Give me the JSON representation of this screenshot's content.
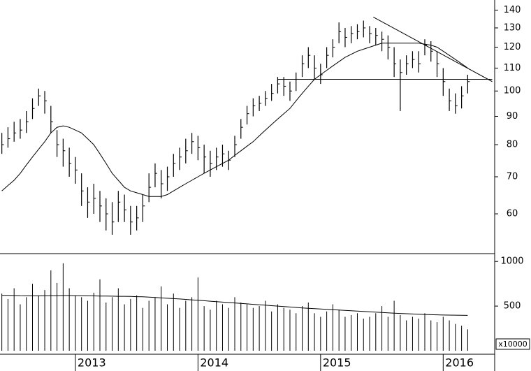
{
  "chart_data": [
    {
      "type": "hlc",
      "log_scale": true,
      "color": "#000000",
      "x": [
        2012.4,
        2012.45,
        2012.5,
        2012.55,
        2012.6,
        2012.65,
        2012.7,
        2012.75,
        2012.8,
        2012.85,
        2012.9,
        2012.95,
        2013.0,
        2013.05,
        2013.1,
        2013.15,
        2013.2,
        2013.25,
        2013.3,
        2013.35,
        2013.4,
        2013.45,
        2013.5,
        2013.55,
        2013.6,
        2013.65,
        2013.7,
        2013.75,
        2013.8,
        2013.85,
        2013.9,
        2013.95,
        2014.0,
        2014.05,
        2014.1,
        2014.15,
        2014.2,
        2014.25,
        2014.3,
        2014.35,
        2014.4,
        2014.45,
        2014.5,
        2014.55,
        2014.6,
        2014.65,
        2014.7,
        2014.75,
        2014.8,
        2014.85,
        2014.9,
        2014.95,
        2015.0,
        2015.05,
        2015.1,
        2015.15,
        2015.2,
        2015.25,
        2015.3,
        2015.35,
        2015.4,
        2015.45,
        2015.5,
        2015.55,
        2015.6,
        2015.65,
        2015.7,
        2015.75,
        2015.8,
        2015.85,
        2015.9,
        2015.95,
        2016.0,
        2016.05,
        2016.1,
        2016.15,
        2016.2
      ],
      "high": [
        84,
        86,
        88,
        89,
        92,
        97,
        101,
        100,
        94,
        85,
        82,
        79,
        76,
        71,
        67,
        68,
        66,
        64,
        63,
        66,
        65,
        62,
        62,
        65,
        71,
        74,
        72,
        73,
        77,
        79,
        82,
        84,
        83,
        80,
        78,
        79,
        80,
        78,
        83,
        89,
        94,
        97,
        98,
        100,
        103,
        106,
        106,
        104,
        108,
        116,
        120,
        116,
        112,
        120,
        124,
        133,
        130,
        131,
        132,
        134,
        131,
        130,
        128,
        126,
        120,
        114,
        116,
        118,
        118,
        124,
        123,
        118,
        110,
        101,
        99,
        102,
        107
      ],
      "low": [
        77,
        79,
        81,
        82,
        84,
        89,
        94,
        91,
        84,
        76,
        73,
        70,
        68,
        62,
        59,
        60,
        58,
        56,
        55,
        58,
        58,
        55,
        56,
        58,
        63,
        67,
        64,
        66,
        70,
        72,
        74,
        77,
        75,
        71,
        70,
        72,
        73,
        72,
        76,
        82,
        87,
        90,
        92,
        94,
        96,
        99,
        98,
        96,
        100,
        106,
        110,
        105,
        103,
        110,
        115,
        122,
        120,
        122,
        124,
        125,
        122,
        121,
        118,
        114,
        106,
        92,
        107,
        110,
        108,
        116,
        113,
        106,
        98,
        92,
        91,
        93,
        99
      ],
      "close": [
        80,
        82,
        84,
        85,
        88,
        93,
        98,
        96,
        88,
        80,
        78,
        74,
        72,
        66,
        63,
        64,
        62,
        60,
        58,
        63,
        61,
        58,
        59,
        62,
        67,
        71,
        68,
        70,
        74,
        76,
        78,
        81,
        79,
        76,
        74,
        76,
        77,
        75,
        80,
        86,
        91,
        94,
        95,
        97,
        99,
        103,
        102,
        100,
        105,
        112,
        116,
        110,
        107,
        116,
        120,
        128,
        125,
        127,
        128,
        130,
        127,
        126,
        124,
        120,
        112,
        108,
        112,
        114,
        112,
        121,
        118,
        112,
        104,
        96,
        94,
        98,
        104
      ],
      "ma": [
        66,
        67.5,
        69,
        71,
        73.5,
        76,
        78.5,
        81,
        84,
        86,
        86.5,
        86,
        85,
        84,
        82,
        80,
        77,
        74,
        71,
        69,
        67,
        66,
        65.5,
        65,
        64.5,
        64.5,
        64.5,
        65,
        66,
        67,
        68,
        69,
        70,
        71,
        72,
        73,
        74,
        75,
        76.5,
        78,
        79.5,
        81,
        83,
        85,
        87,
        89,
        91,
        93,
        96,
        99,
        102,
        105,
        107,
        109,
        111,
        113,
        115,
        116.5,
        118,
        119,
        120,
        121,
        122,
        122,
        122,
        122,
        122,
        122,
        122,
        121.5,
        121,
        120,
        118,
        116,
        114,
        112,
        110
      ],
      "trendlines": [
        {
          "x": [
            2015.43,
            2016.4
          ],
          "y": [
            136,
            104
          ]
        },
        {
          "x": [
            2014.65,
            2016.4
          ],
          "y": [
            105,
            105
          ]
        }
      ],
      "xlim": [
        2012.385,
        2016.42
      ],
      "xticks": [
        2013,
        2014,
        2015,
        2016
      ],
      "ylim": [
        51,
        146
      ],
      "yticks": [
        60,
        70,
        80,
        90,
        100,
        110,
        120,
        130,
        140
      ]
    },
    {
      "type": "volume",
      "color": "#000000",
      "values": [
        640,
        580,
        700,
        520,
        600,
        750,
        620,
        680,
        900,
        760,
        980,
        700,
        620,
        600,
        560,
        650,
        800,
        540,
        600,
        700,
        520,
        580,
        620,
        480,
        560,
        600,
        720,
        520,
        640,
        480,
        560,
        600,
        820,
        500,
        460,
        560,
        520,
        480,
        600,
        540,
        520,
        480,
        500,
        560,
        440,
        520,
        480,
        460,
        420,
        500,
        540,
        420,
        380,
        440,
        520,
        460,
        380,
        400,
        420,
        360,
        380,
        420,
        500,
        380,
        560,
        400,
        340,
        380,
        360,
        420,
        340,
        320,
        380,
        340,
        300,
        280,
        240
      ],
      "ma": [
        620,
        620,
        618,
        616,
        615,
        614,
        614,
        615,
        616,
        617,
        618,
        618,
        617,
        616,
        615,
        614,
        613,
        612,
        611,
        610,
        610,
        608,
        606,
        604,
        600,
        596,
        592,
        588,
        584,
        580,
        575,
        570,
        565,
        560,
        555,
        550,
        545,
        540,
        535,
        530,
        525,
        520,
        515,
        510,
        505,
        500,
        495,
        490,
        485,
        480,
        476,
        472,
        468,
        464,
        460,
        456,
        452,
        448,
        444,
        440,
        436,
        432,
        428,
        424,
        421,
        418,
        415,
        412,
        409,
        406,
        404,
        402,
        400,
        399,
        398,
        397,
        396
      ],
      "ylim": [
        0,
        1080
      ],
      "yticks": [
        500,
        1000
      ],
      "unit_label": "x10000"
    }
  ]
}
